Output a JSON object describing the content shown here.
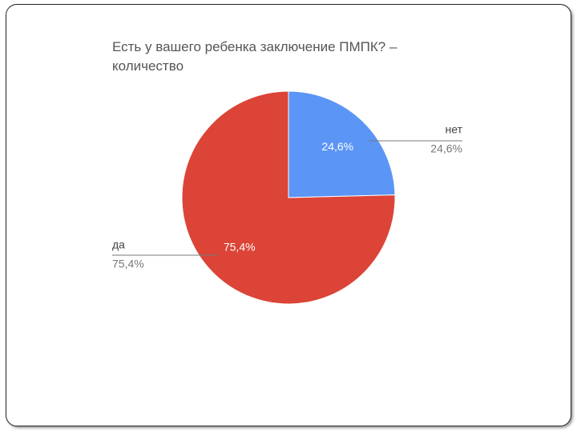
{
  "chart_data": {
    "type": "pie",
    "title": "Есть у вашего ребенка заключение ПМПК? – количество",
    "categories": [
      "нет",
      "да"
    ],
    "values": [
      24.6,
      75.4
    ],
    "value_labels": [
      "24,6%",
      "75,4%"
    ],
    "colors": [
      "#5b95f5",
      "#db4437"
    ]
  }
}
